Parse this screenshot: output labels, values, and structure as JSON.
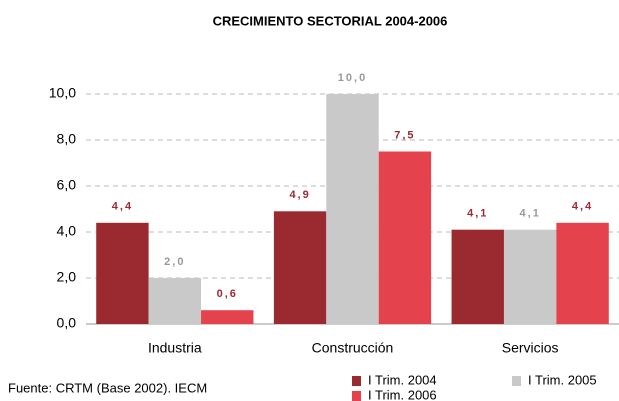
{
  "chart_data": {
    "type": "bar",
    "title": "CRECIMIENTO SECTORIAL 2004-2006",
    "categories": [
      "Industria",
      "Construcción",
      "Servicios"
    ],
    "series": [
      {
        "name": "I Trim. 2004",
        "color": "#9b2a30",
        "values": [
          4.4,
          4.9,
          4.1
        ],
        "value_labels": [
          "4,4",
          "4,9",
          "4,1"
        ]
      },
      {
        "name": "I Trim. 2005",
        "color": "#c9c9c9",
        "values": [
          2.0,
          10.0,
          4.1
        ],
        "value_labels": [
          "2,0",
          "10,0",
          "4,1"
        ]
      },
      {
        "name": "I Trim. 2006",
        "color": "#e4424c",
        "values": [
          0.6,
          7.5,
          4.4
        ],
        "value_labels": [
          "0,6",
          "7,5",
          "4,4"
        ]
      }
    ],
    "ylim": [
      0,
      10
    ],
    "yticks": [
      {
        "value": 0,
        "label": "0,0"
      },
      {
        "value": 2,
        "label": "2,0"
      },
      {
        "value": 4,
        "label": "4,0"
      },
      {
        "value": 6,
        "label": "6,0"
      },
      {
        "value": 8,
        "label": "8,0"
      },
      {
        "value": 10,
        "label": "10,0"
      }
    ],
    "grid": true,
    "source": "Fuente: CRTM (Base 2002). IECM"
  }
}
